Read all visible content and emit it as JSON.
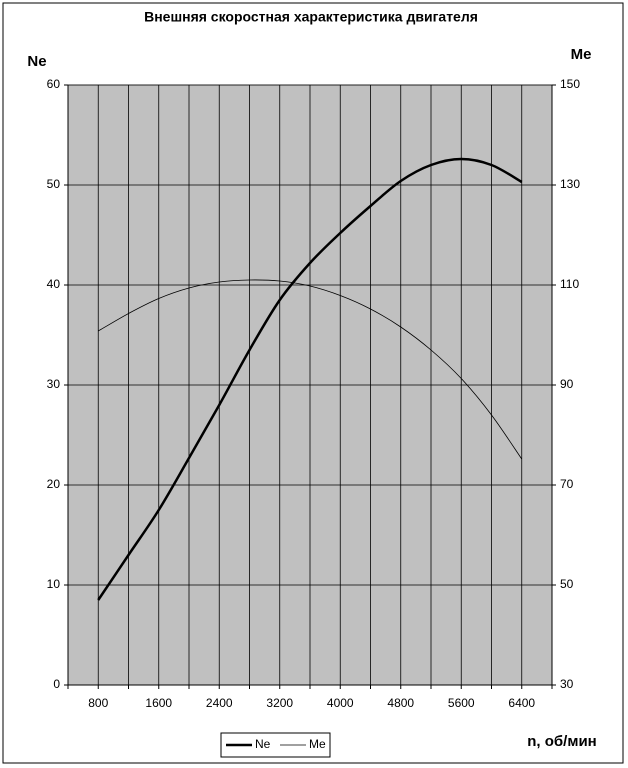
{
  "chart_data": {
    "type": "line",
    "title": "Внешняя скоростная характеристика двигателя",
    "y_label": "Ne",
    "y2_label": "Me",
    "x_label": "n, об/мин",
    "x": [
      800,
      1200,
      1600,
      2000,
      2400,
      2800,
      3200,
      3600,
      4000,
      4400,
      4800,
      5200,
      5600,
      6000,
      6400
    ],
    "xlim": [
      400,
      6800
    ],
    "xticks": [
      800,
      1600,
      2400,
      3200,
      4000,
      4800,
      5600,
      6400
    ],
    "xgrid": [
      400,
      1200,
      2000,
      2800,
      3600,
      4400,
      5200,
      6000,
      6800
    ],
    "ylim": [
      0,
      60
    ],
    "yticks": [
      0,
      10,
      20,
      30,
      40,
      50,
      60
    ],
    "y2lim": [
      30,
      150
    ],
    "y2ticks": [
      30,
      50,
      70,
      90,
      110,
      130,
      150
    ],
    "grid": true,
    "plot_background": "#c0c0c0",
    "legend_position": "bottom",
    "series": [
      {
        "name": "Ne",
        "color": "#000000",
        "width": 2.5,
        "values": [
          8.5,
          13,
          17.5,
          22.7,
          28,
          33.5,
          38.5,
          42.2,
          45.2,
          47.9,
          50.4,
          52,
          52.6,
          52,
          50.3
        ]
      },
      {
        "name": "Me",
        "color": "#000000",
        "width": 0.8,
        "axis": "y2",
        "values": [
          100.8,
          104.3,
          107.3,
          109.4,
          110.6,
          111,
          110.8,
          109.8,
          107.9,
          105.2,
          101.6,
          97,
          91.3,
          84,
          75.2
        ]
      }
    ]
  }
}
